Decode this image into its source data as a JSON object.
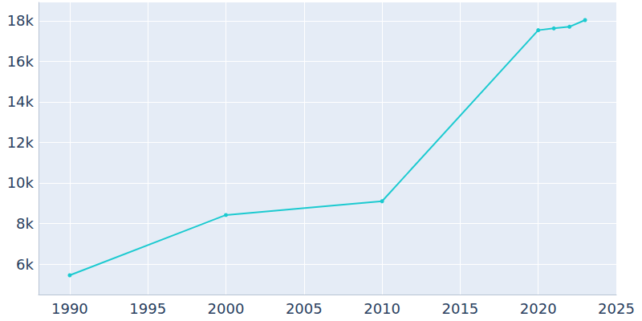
{
  "chart_data": {
    "type": "line",
    "x": [
      1990,
      2000,
      2010,
      2020,
      2021,
      2022,
      2023
    ],
    "values": [
      5450,
      8420,
      9100,
      17530,
      17620,
      17700,
      18030
    ],
    "color": "#1ccad0",
    "marker": "circle",
    "xlim": [
      1988,
      2025
    ],
    "xticks": [
      1990,
      1995,
      2000,
      2005,
      2010,
      2015,
      2020,
      2025
    ],
    "ylim": [
      4500,
      18900
    ],
    "yticks": [
      {
        "value": 6000,
        "label": "6k"
      },
      {
        "value": 8000,
        "label": "8k"
      },
      {
        "value": 10000,
        "label": "10k"
      },
      {
        "value": 12000,
        "label": "12k"
      },
      {
        "value": 14000,
        "label": "14k"
      },
      {
        "value": 16000,
        "label": "16k"
      },
      {
        "value": 18000,
        "label": "18k"
      }
    ],
    "grid": true
  }
}
